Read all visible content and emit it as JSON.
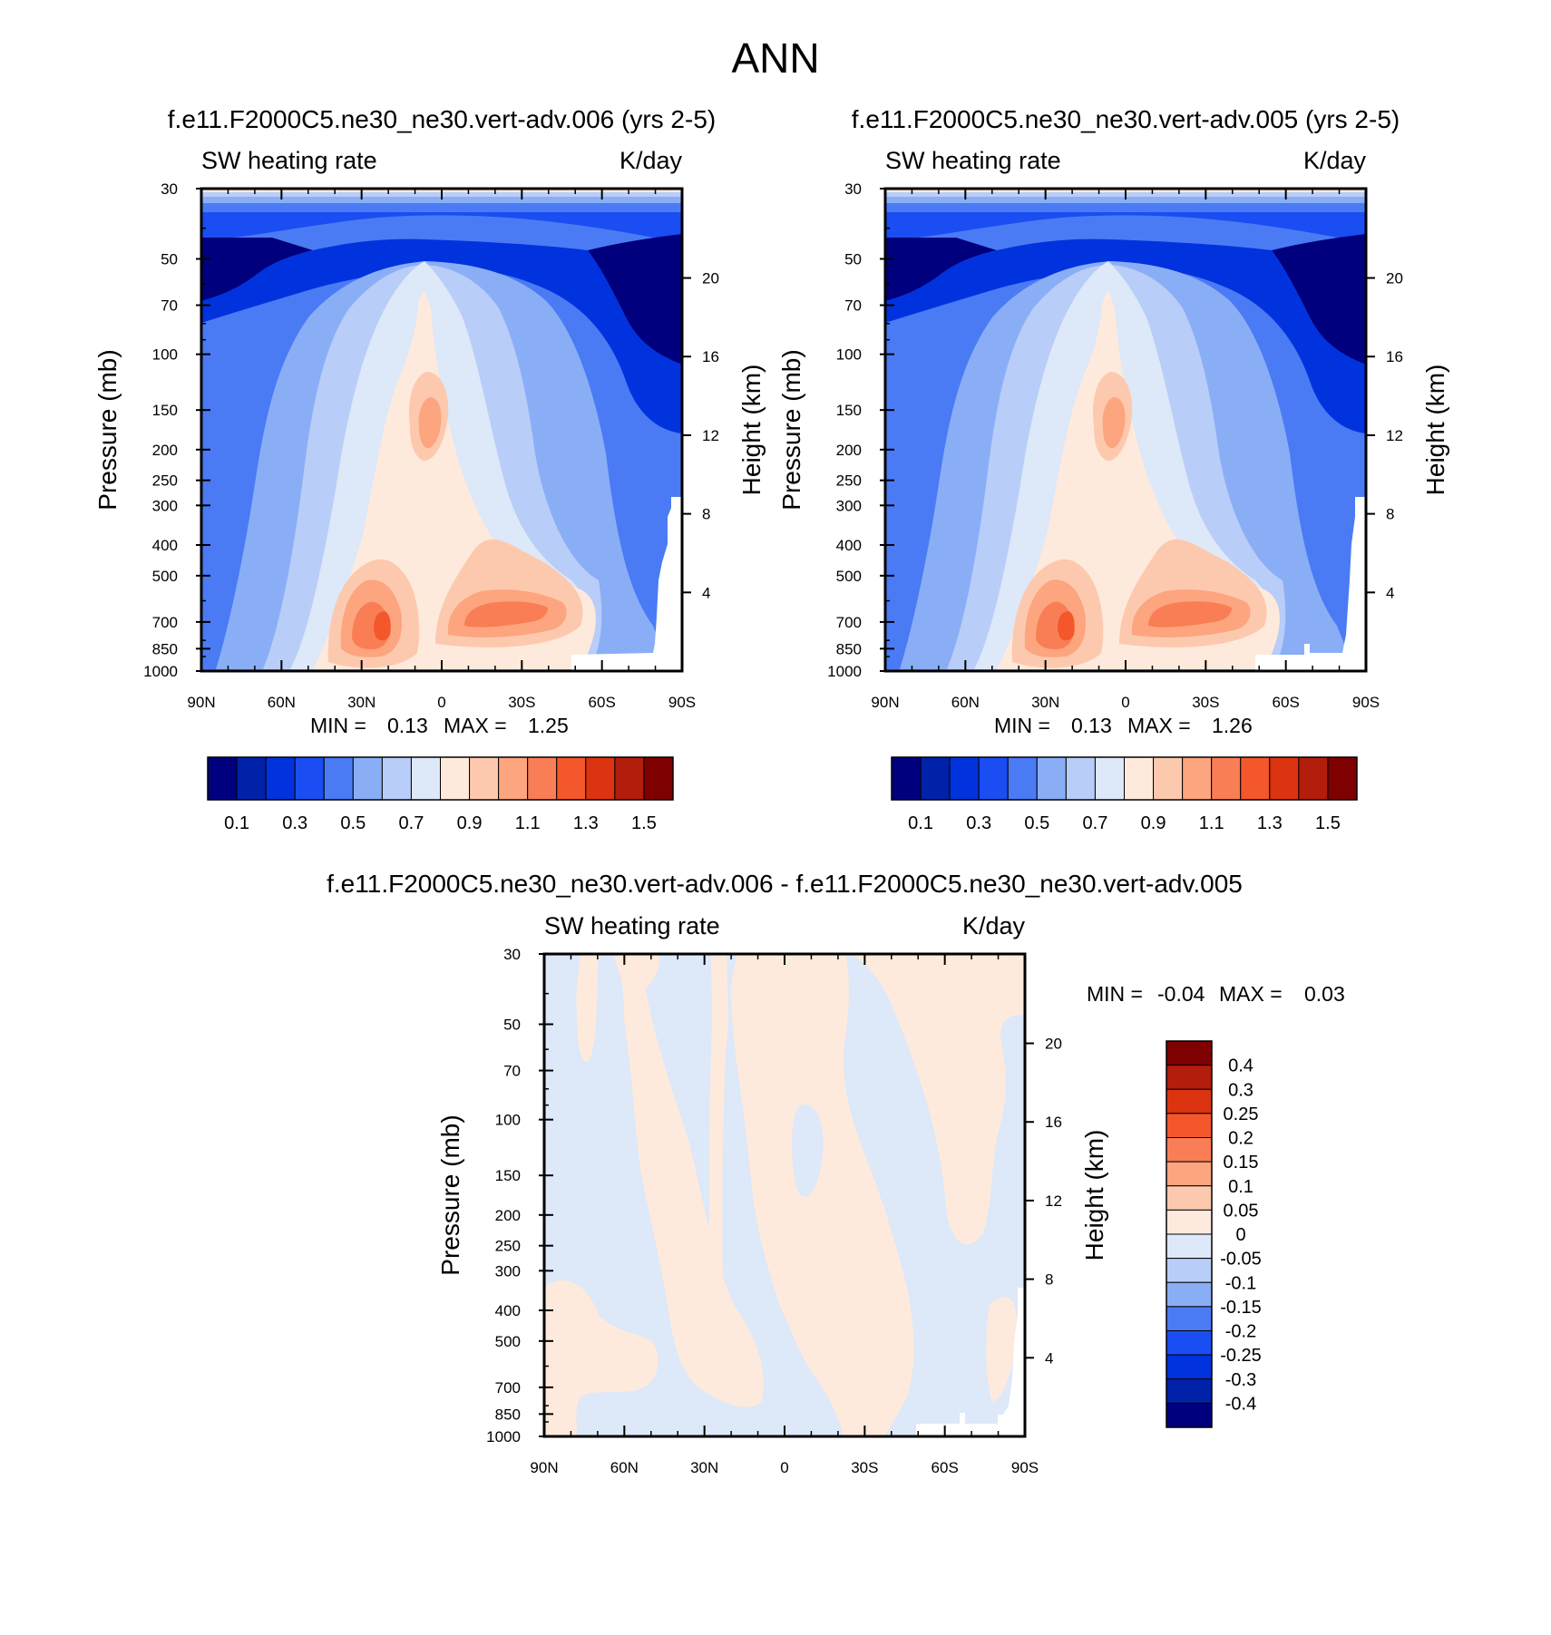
{
  "page": {
    "title": "ANN"
  },
  "chart_data": [
    {
      "type": "heatmap",
      "title": "f.e11.F2000C5.ne30_ne30.vert-adv.006 (yrs 2-5)",
      "left_subtitle": "SW heating rate",
      "right_subtitle": "K/day",
      "xlabel": "",
      "ylabel": "Pressure (mb)",
      "ylabel_right": "Height (km)",
      "x_ticks": [
        "90N",
        "60N",
        "30N",
        "0",
        "30S",
        "60S",
        "90S"
      ],
      "x_range": [
        90,
        -90
      ],
      "y_ticks": [
        30,
        50,
        70,
        100,
        150,
        200,
        250,
        300,
        400,
        500,
        700,
        850,
        1000
      ],
      "y_range": [
        30,
        1000
      ],
      "height_ticks": [
        20,
        16,
        12,
        8,
        4
      ],
      "min": 0.13,
      "max": 1.25,
      "min_label": "MIN =",
      "max_label": "MAX =",
      "min_text": "0.13",
      "max_text": "1.25",
      "levels": [
        0.1,
        0.2,
        0.3,
        0.4,
        0.5,
        0.6,
        0.7,
        0.8,
        0.9,
        1.0,
        1.1,
        1.2,
        1.3,
        1.4,
        1.5
      ],
      "colorbar_labels": [
        "0.1",
        "0.3",
        "0.5",
        "0.7",
        "0.9",
        "1.1",
        "1.3",
        "1.5"
      ]
    },
    {
      "type": "heatmap",
      "title": "f.e11.F2000C5.ne30_ne30.vert-adv.005 (yrs 2-5)",
      "left_subtitle": "SW heating rate",
      "right_subtitle": "K/day",
      "xlabel": "",
      "ylabel": "Pressure (mb)",
      "ylabel_right": "Height (km)",
      "x_ticks": [
        "90N",
        "60N",
        "30N",
        "0",
        "30S",
        "60S",
        "90S"
      ],
      "x_range": [
        90,
        -90
      ],
      "y_ticks": [
        30,
        50,
        70,
        100,
        150,
        200,
        250,
        300,
        400,
        500,
        700,
        850,
        1000
      ],
      "y_range": [
        30,
        1000
      ],
      "height_ticks": [
        20,
        16,
        12,
        8,
        4
      ],
      "min": 0.13,
      "max": 1.26,
      "min_label": "MIN =",
      "max_label": "MAX =",
      "min_text": "0.13",
      "max_text": "1.26",
      "levels": [
        0.1,
        0.2,
        0.3,
        0.4,
        0.5,
        0.6,
        0.7,
        0.8,
        0.9,
        1.0,
        1.1,
        1.2,
        1.3,
        1.4,
        1.5
      ],
      "colorbar_labels": [
        "0.1",
        "0.3",
        "0.5",
        "0.7",
        "0.9",
        "1.1",
        "1.3",
        "1.5"
      ]
    },
    {
      "type": "heatmap",
      "title": "f.e11.F2000C5.ne30_ne30.vert-adv.006 - f.e11.F2000C5.ne30_ne30.vert-adv.005",
      "left_subtitle": "SW heating rate",
      "right_subtitle": "K/day",
      "xlabel": "",
      "ylabel": "Pressure (mb)",
      "ylabel_right": "Height (km)",
      "x_ticks": [
        "90N",
        "60N",
        "30N",
        "0",
        "30S",
        "60S",
        "90S"
      ],
      "x_range": [
        90,
        -90
      ],
      "y_ticks": [
        30,
        50,
        70,
        100,
        150,
        200,
        250,
        300,
        400,
        500,
        700,
        850,
        1000
      ],
      "y_range": [
        30,
        1000
      ],
      "height_ticks": [
        20,
        16,
        12,
        8,
        4
      ],
      "min": -0.04,
      "max": 0.03,
      "min_label": "MIN =",
      "max_label": "MAX =",
      "min_text": "-0.04",
      "max_text": "0.03",
      "levels": [
        -0.4,
        -0.3,
        -0.25,
        -0.2,
        -0.15,
        -0.1,
        -0.05,
        0,
        0.05,
        0.1,
        0.15,
        0.2,
        0.25,
        0.3,
        0.4
      ],
      "colorbar_labels": [
        "0.4",
        "0.3",
        "0.25",
        "0.2",
        "0.15",
        "0.1",
        "0.05",
        "0",
        "-0.05",
        "-0.1",
        "-0.15",
        "-0.2",
        "-0.25",
        "-0.3",
        "-0.4"
      ]
    }
  ],
  "colors": {
    "abs_palette": [
      "#00007f",
      "#0022a8",
      "#0033dd",
      "#1a4df2",
      "#4a7bf4",
      "#8aaef6",
      "#b8cdf8",
      "#dde8f8",
      "#feeadc",
      "#fdc9ae",
      "#fca57f",
      "#f97e55",
      "#f4572b",
      "#dc3310",
      "#b31d0b",
      "#7f0000"
    ],
    "diff_palette": [
      "#7f0000",
      "#b31d0b",
      "#dc3310",
      "#f4572b",
      "#f97e55",
      "#fca57f",
      "#fdc9ae",
      "#feeadc",
      "#dde8f8",
      "#b8cdf8",
      "#8aaef6",
      "#4a7bf4",
      "#1a4df2",
      "#0033dd",
      "#0022a8",
      "#00007f"
    ],
    "diff_positive": "#feeadc",
    "diff_negative": "#dde8f8"
  }
}
